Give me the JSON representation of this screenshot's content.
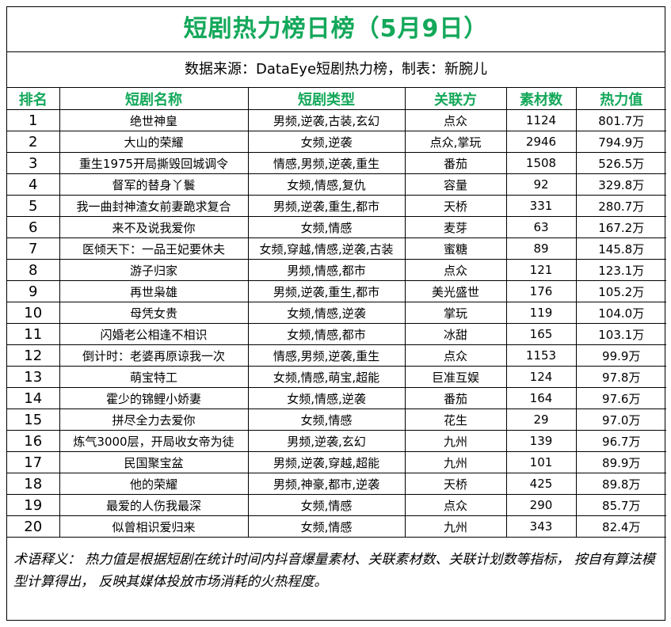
{
  "title": "短剧热力榜日榜（5月9日）",
  "source": "数据来源：DataEye短剧热力榜，制表：新腕儿",
  "colors": {
    "accent": "#13a85a",
    "border": "#000000"
  },
  "headers": {
    "rank": "排名",
    "name": "短剧名称",
    "type": "短剧类型",
    "partner": "关联方",
    "materials": "素材数",
    "heat": "热力值"
  },
  "rows": [
    {
      "rank": "1",
      "name": "绝世神皇",
      "type": "男频,逆袭,古装,玄幻",
      "partner": "点众",
      "materials": "1124",
      "heat": "801.7万"
    },
    {
      "rank": "2",
      "name": "大山的荣耀",
      "type": "女频,逆袭",
      "partner": "点众,掌玩",
      "materials": "2946",
      "heat": "794.9万"
    },
    {
      "rank": "3",
      "name": "重生1975开局撕毁回城调令",
      "type": "情感,男频,逆袭,重生",
      "partner": "番茄",
      "materials": "1508",
      "heat": "526.5万"
    },
    {
      "rank": "4",
      "name": "督军的替身丫鬟",
      "type": "女频,情感,复仇",
      "partner": "容量",
      "materials": "92",
      "heat": "329.8万"
    },
    {
      "rank": "5",
      "name": "我一曲封神渣女前妻跪求复合",
      "type": "男频,逆袭,重生,都市",
      "partner": "天桥",
      "materials": "331",
      "heat": "280.7万"
    },
    {
      "rank": "6",
      "name": "来不及说我爱你",
      "type": "女频,情感",
      "partner": "麦芽",
      "materials": "63",
      "heat": "167.2万"
    },
    {
      "rank": "7",
      "name": "医倾天下：一品王妃要休夫",
      "type": "女频,穿越,情感,逆袭,古装",
      "partner": "蜜糖",
      "materials": "89",
      "heat": "145.8万"
    },
    {
      "rank": "8",
      "name": "游子归家",
      "type": "男频,情感,都市",
      "partner": "点众",
      "materials": "121",
      "heat": "123.1万"
    },
    {
      "rank": "9",
      "name": "再世枭雄",
      "type": "男频,逆袭,重生,都市",
      "partner": "美光盛世",
      "materials": "176",
      "heat": "105.2万"
    },
    {
      "rank": "10",
      "name": "母凭女贵",
      "type": "女频,情感,逆袭",
      "partner": "掌玩",
      "materials": "119",
      "heat": "104.0万"
    },
    {
      "rank": "11",
      "name": "闪婚老公相逢不相识",
      "type": "女频,情感,都市",
      "partner": "冰甜",
      "materials": "165",
      "heat": "103.1万"
    },
    {
      "rank": "12",
      "name": "倒计时：老婆再原谅我一次",
      "type": "情感,男频,逆袭,重生",
      "partner": "点众",
      "materials": "1153",
      "heat": "99.9万"
    },
    {
      "rank": "13",
      "name": "萌宝特工",
      "type": "女频,情感,萌宝,超能",
      "partner": "巨准互娱",
      "materials": "124",
      "heat": "97.8万"
    },
    {
      "rank": "14",
      "name": "霍少的锦鲤小娇妻",
      "type": "女频,情感,逆袭",
      "partner": "番茄",
      "materials": "164",
      "heat": "97.6万"
    },
    {
      "rank": "15",
      "name": "拼尽全力去爱你",
      "type": "女频,情感",
      "partner": "花生",
      "materials": "29",
      "heat": "97.0万"
    },
    {
      "rank": "16",
      "name": "炼气3000层，开局收女帝为徒",
      "type": "男频,逆袭,玄幻",
      "partner": "九州",
      "materials": "139",
      "heat": "96.7万"
    },
    {
      "rank": "17",
      "name": "民国聚宝盆",
      "type": "男频,逆袭,穿越,超能",
      "partner": "九州",
      "materials": "101",
      "heat": "89.9万"
    },
    {
      "rank": "18",
      "name": "他的荣耀",
      "type": "男频,神豪,都市,逆袭",
      "partner": "天桥",
      "materials": "425",
      "heat": "89.8万"
    },
    {
      "rank": "19",
      "name": "最爱的人伤我最深",
      "type": "女频,情感",
      "partner": "点众",
      "materials": "290",
      "heat": "85.7万"
    },
    {
      "rank": "20",
      "name": "似曾相识爱归来",
      "type": "女频,情感",
      "partner": "九州",
      "materials": "343",
      "heat": "82.4万"
    }
  ],
  "note": "术语释义： 热力值是根据短剧在统计时间内抖音爆量素材、关联素材数、关联计划数等指标， 按自有算法模型计算得出， 反映其媒体投放市场消耗的火热程度。"
}
